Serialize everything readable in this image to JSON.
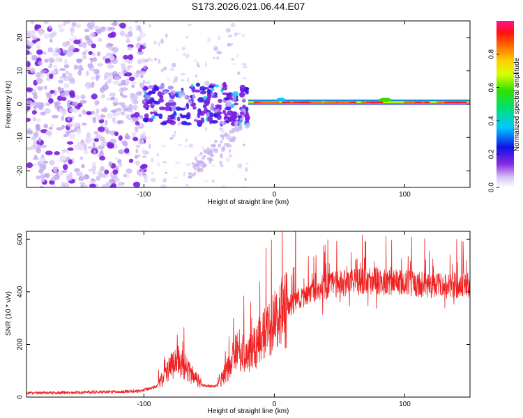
{
  "title": "S173.2026.021.06.44.E07",
  "chart_data": [
    {
      "type": "heatmap",
      "xlabel": "Height of straight line (km)",
      "ylabel": "Frequency (Hz)",
      "xlim": [
        -190,
        150
      ],
      "ylim": [
        -25,
        25
      ],
      "x_ticks": [
        -100,
        0,
        100
      ],
      "y_ticks": [
        -20,
        -10,
        0,
        10,
        20
      ],
      "colorbar": {
        "label": "Normalized spectral amplitude",
        "range": [
          0.0,
          1.0
        ],
        "ticks": [
          0.0,
          0.2,
          0.4,
          0.6,
          0.8
        ]
      },
      "description_regions": [
        {
          "x_range": [
            -190,
            -100
          ],
          "freq_range": [
            -25,
            25
          ],
          "amplitude": "low, scattered"
        },
        {
          "x_range": [
            -100,
            -20
          ],
          "freq_range": [
            -15,
            25
          ],
          "amplitude": "low-moderate, clustered near 0 Hz"
        },
        {
          "x_range": [
            -20,
            150
          ],
          "freq_range": [
            -1,
            2
          ],
          "amplitude": "high, narrow band at ~0.5 Hz"
        }
      ]
    },
    {
      "type": "line",
      "xlabel": "Height of straight line (km)",
      "ylabel": "SNR (10 * v/v)",
      "xlim": [
        -190,
        150
      ],
      "ylim": [
        0,
        630
      ],
      "x_ticks": [
        -100,
        0,
        100
      ],
      "y_ticks": [
        0,
        200,
        400,
        600
      ],
      "color": "#ee2222",
      "key_points": [
        {
          "x": -190,
          "y": 15
        },
        {
          "x": -150,
          "y": 18
        },
        {
          "x": -105,
          "y": 22
        },
        {
          "x": -90,
          "y": 40
        },
        {
          "x": -80,
          "y": 110
        },
        {
          "x": -75,
          "y": 140
        },
        {
          "x": -70,
          "y": 120
        },
        {
          "x": -62,
          "y": 80
        },
        {
          "x": -55,
          "y": 45
        },
        {
          "x": -45,
          "y": 40
        },
        {
          "x": -35,
          "y": 110
        },
        {
          "x": -30,
          "y": 170
        },
        {
          "x": -20,
          "y": 160
        },
        {
          "x": -10,
          "y": 220
        },
        {
          "x": 0,
          "y": 280
        },
        {
          "x": 10,
          "y": 340
        },
        {
          "x": 20,
          "y": 380
        },
        {
          "x": 30,
          "y": 410
        },
        {
          "x": 50,
          "y": 430
        },
        {
          "x": 70,
          "y": 440
        },
        {
          "x": 90,
          "y": 440
        },
        {
          "x": 110,
          "y": 430
        },
        {
          "x": 130,
          "y": 420
        },
        {
          "x": 150,
          "y": 430
        }
      ]
    }
  ]
}
